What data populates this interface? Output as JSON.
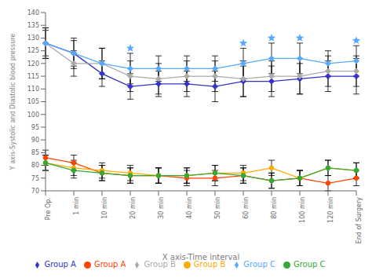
{
  "chart_data": {
    "type": "line",
    "xlabel": "X axis-Time interval",
    "ylabel": "Y axis-Systolic and Diastolic blood pressure",
    "categories": [
      "Pre Op.",
      "1 min",
      "10 min",
      "20 min",
      "30 min",
      "40 min",
      "50 min",
      "60 min",
      "80 min",
      "100 min",
      "120 min",
      "End of Surgery"
    ],
    "ylim": [
      70,
      140
    ],
    "yticks": [
      70,
      75,
      80,
      85,
      90,
      95,
      100,
      105,
      110,
      115,
      120,
      125,
      130,
      135,
      140
    ],
    "grid": false,
    "legend": "bottom",
    "series": [
      {
        "name": "Group A",
        "color": "#3333cc",
        "marker": "diamond",
        "values": [
          128,
          124,
          116,
          111,
          112,
          112,
          111,
          113,
          113,
          114,
          115,
          115
        ],
        "error": [
          6,
          6,
          5,
          5,
          5,
          5,
          6,
          6,
          6,
          6,
          6,
          7
        ]
      },
      {
        "name": "Group B",
        "color": "#aaaaaa",
        "marker": "diamond",
        "values": [
          128,
          120,
          120,
          115,
          114,
          115,
          115,
          114,
          115,
          115,
          117,
          117
        ],
        "error": [
          6,
          5,
          6,
          6,
          6,
          6,
          6,
          7,
          6,
          7,
          6,
          6
        ]
      },
      {
        "name": "Group C",
        "color": "#55aaff",
        "marker": "diamond",
        "values": [
          128,
          124,
          120,
          118,
          118,
          118,
          118,
          120,
          122,
          122,
          120,
          121
        ],
        "error": [
          5,
          5,
          6,
          6,
          5,
          5,
          5,
          6,
          6,
          6,
          5,
          6
        ]
      },
      {
        "name": "Group A",
        "color": "#ff4400",
        "marker": "circle",
        "values": [
          83,
          81,
          77,
          76,
          76,
          75,
          75,
          76,
          74,
          75,
          73,
          75
        ],
        "error": [
          3,
          3,
          3,
          3,
          3,
          3,
          3,
          3,
          3,
          3,
          3,
          3
        ]
      },
      {
        "name": "Group B",
        "color": "#ffaa00",
        "marker": "circle",
        "values": [
          81,
          79,
          78,
          77,
          76,
          76,
          77,
          77,
          79,
          75,
          79,
          78
        ],
        "error": [
          3,
          3,
          3,
          3,
          3,
          3,
          3,
          3,
          3,
          3,
          3,
          3
        ]
      },
      {
        "name": "Group C",
        "color": "#33aa33",
        "marker": "circle",
        "values": [
          81,
          78,
          77,
          76,
          76,
          76,
          77,
          76,
          74,
          75,
          79,
          78
        ],
        "error": [
          3,
          3,
          3,
          3,
          3,
          3,
          3,
          3,
          3,
          3,
          3,
          3
        ]
      },
      {
        "type": "scatter",
        "marker": "star",
        "color": "#55aaff",
        "values": [
          null,
          null,
          null,
          126,
          null,
          null,
          null,
          128,
          130,
          130,
          null,
          129
        ]
      }
    ]
  }
}
